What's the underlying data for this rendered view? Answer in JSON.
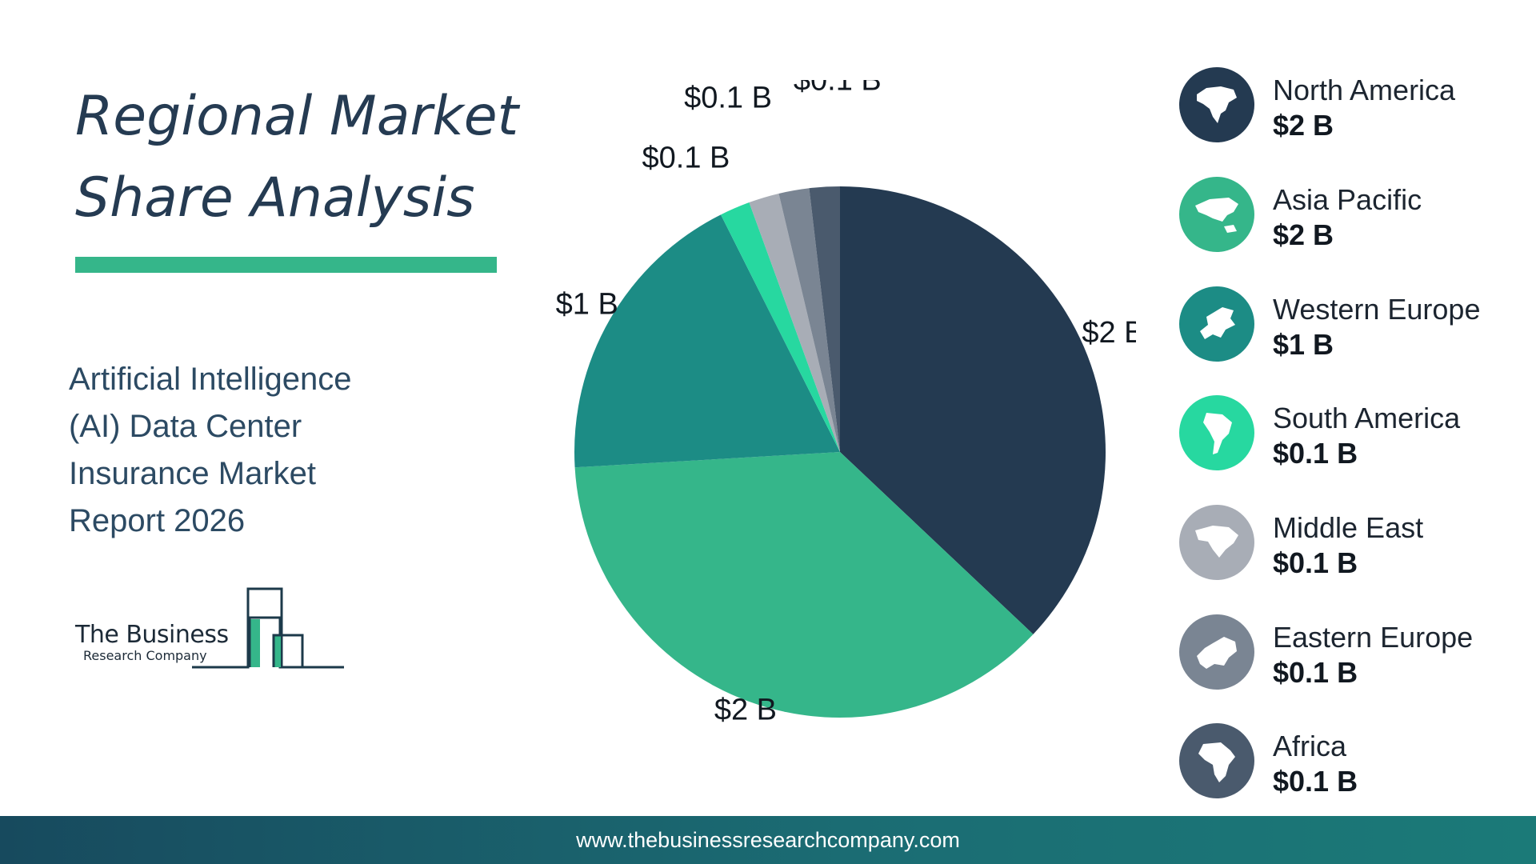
{
  "title_line1": "Regional Market",
  "title_line2": "Share Analysis",
  "subtitle_lines": [
    "Artificial Intelligence",
    "(AI) Data Center",
    "Insurance Market",
    "Report 2026"
  ],
  "logo": {
    "line1": "The Business",
    "line2": "Research Company"
  },
  "footer": {
    "url": "www.thebusinessresearchcompany.com"
  },
  "colors": {
    "accent": "#35b68a",
    "footer": "#1b6c73"
  },
  "chart_data": {
    "type": "pie",
    "start": "12 o'clock, clockwise",
    "slices": [
      {
        "label": "North America",
        "value": 2,
        "display": "$2 B",
        "color": "#243a51",
        "icon": "north-america-map-icon"
      },
      {
        "label": "Asia Pacific",
        "value": 2,
        "display": "$2 B",
        "color": "#35b68a",
        "icon": "asia-pacific-map-icon"
      },
      {
        "label": "Western Europe",
        "value": 1,
        "display": "$1 B",
        "color": "#1c8c85",
        "icon": "western-europe-map-icon"
      },
      {
        "label": "South America",
        "value": 0.1,
        "display": "$0.1 B",
        "color": "#27d8a0",
        "icon": "south-america-map-icon"
      },
      {
        "label": "Middle East",
        "value": 0.1,
        "display": "$0.1 B",
        "color": "#a8adb6",
        "icon": "middle-east-map-icon"
      },
      {
        "label": "Eastern Europe",
        "value": 0.1,
        "display": "$0.1 B",
        "color": "#7a8593",
        "icon": "eastern-europe-map-icon"
      },
      {
        "label": "Africa",
        "value": 0.1,
        "display": "$0.1 B",
        "color": "#4a5a6d",
        "icon": "africa-map-icon"
      }
    ]
  }
}
